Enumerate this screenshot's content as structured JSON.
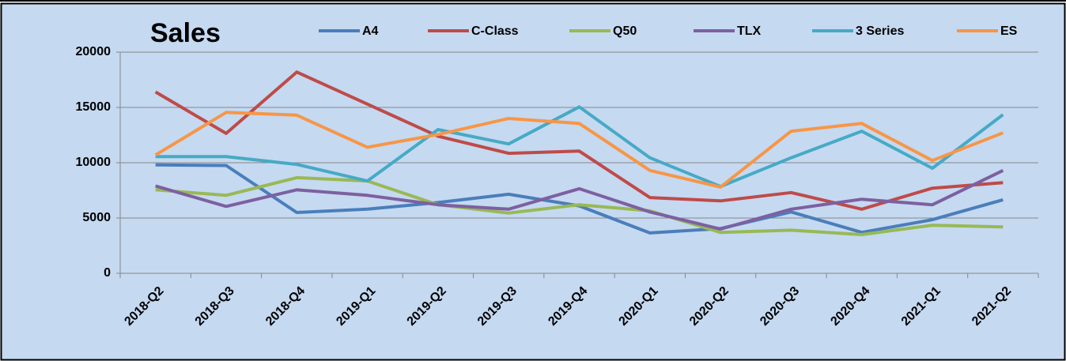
{
  "chart_data": {
    "type": "line",
    "title": "Sales",
    "categories": [
      "2018-Q2",
      "2018-Q3",
      "2018-Q4",
      "2019-Q1",
      "2019-Q2",
      "2019-Q3",
      "2019-Q4",
      "2020-Q1",
      "2020-Q2",
      "2020-Q3",
      "2020-Q4",
      "2021-Q1",
      "2021-Q2"
    ],
    "series": [
      {
        "name": "A4",
        "color": "#4a7ebb",
        "values": [
          9800,
          9750,
          5500,
          5800,
          6400,
          7150,
          6100,
          3650,
          4050,
          5550,
          3700,
          4850,
          6650
        ]
      },
      {
        "name": "C-Class",
        "color": "#be4b48",
        "values": [
          16400,
          12650,
          18200,
          15300,
          12400,
          10850,
          11050,
          6850,
          6550,
          7300,
          5800,
          7700,
          8200
        ]
      },
      {
        "name": "Q50",
        "color": "#98b954",
        "values": [
          7550,
          7050,
          8650,
          8350,
          6200,
          5450,
          6200,
          5650,
          3700,
          3900,
          3500,
          4350,
          4200
        ]
      },
      {
        "name": "TLX",
        "color": "#7d60a0",
        "values": [
          7900,
          6050,
          7550,
          7050,
          6200,
          5800,
          7650,
          5550,
          4000,
          5800,
          6700,
          6200,
          9300
        ]
      },
      {
        "name": "3 Series",
        "color": "#46aac5",
        "values": [
          10550,
          10550,
          9850,
          8350,
          13000,
          11700,
          15050,
          10450,
          7850,
          10450,
          12850,
          9500,
          14350
        ]
      },
      {
        "name": "ES",
        "color": "#f79646",
        "values": [
          10700,
          14550,
          14300,
          11400,
          12550,
          14000,
          13550,
          9300,
          7800,
          12850,
          13550,
          10200,
          12700
        ]
      }
    ],
    "ylim": [
      0,
      20000
    ],
    "yticks": [
      0,
      5000,
      10000,
      15000,
      20000
    ],
    "grid": true
  }
}
